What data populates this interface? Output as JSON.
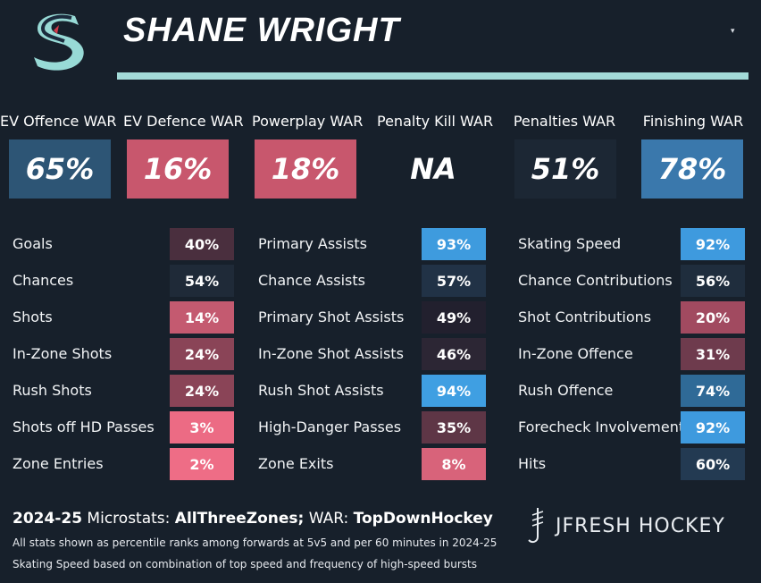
{
  "player": {
    "name": "SHANE WRIGHT"
  },
  "dropdown": {
    "icon": "chevron-down-icon",
    "glyph": "▾"
  },
  "team_logo": {
    "icon": "kraken-s-logo-icon"
  },
  "war": [
    {
      "label": "EV Offence WAR",
      "value": "65%",
      "color": "#2d5575"
    },
    {
      "label": "EV Defence WAR",
      "value": "16%",
      "color": "#c8576d"
    },
    {
      "label": "Powerplay WAR",
      "value": "18%",
      "color": "#c8576d"
    },
    {
      "label": "Penalty Kill WAR",
      "value": "NA",
      "color": "#17202b"
    },
    {
      "label": "Penalties WAR",
      "value": "51%",
      "color": "#1c2734"
    },
    {
      "label": "Finishing WAR",
      "value": "78%",
      "color": "#3a78ac"
    }
  ],
  "stats_columns": [
    [
      {
        "label": "Goals",
        "value": "40%",
        "color": "#4a2f3e"
      },
      {
        "label": "Chances",
        "value": "54%",
        "color": "#1f2a38"
      },
      {
        "label": "Shots",
        "value": "14%",
        "color": "#c45a70"
      },
      {
        "label": "In-Zone Shots",
        "value": "24%",
        "color": "#8a4457"
      },
      {
        "label": "Rush Shots",
        "value": "24%",
        "color": "#8a4457"
      },
      {
        "label": "Shots off HD Passes",
        "value": "3%",
        "color": "#ec6b84"
      },
      {
        "label": "Zone Entries",
        "value": "2%",
        "color": "#ee6d86"
      }
    ],
    [
      {
        "label": "Primary Assists",
        "value": "93%",
        "color": "#3e9bde"
      },
      {
        "label": "Chance Assists",
        "value": "57%",
        "color": "#213246"
      },
      {
        "label": "Primary Shot Assists",
        "value": "49%",
        "color": "#22202e"
      },
      {
        "label": "In-Zone Shot Assists",
        "value": "46%",
        "color": "#2c2634"
      },
      {
        "label": "Rush Shot Assists",
        "value": "94%",
        "color": "#3f9fe2"
      },
      {
        "label": "High-Danger Passes",
        "value": "35%",
        "color": "#5e3646"
      },
      {
        "label": "Zone Exits",
        "value": "8%",
        "color": "#d8637a"
      }
    ],
    [
      {
        "label": "Skating Speed",
        "value": "92%",
        "color": "#3e9ade"
      },
      {
        "label": "Chance Contributions",
        "value": "56%",
        "color": "#1f2d3d"
      },
      {
        "label": "Shot Contributions",
        "value": "20%",
        "color": "#a14a60"
      },
      {
        "label": "In-Zone Offence",
        "value": "31%",
        "color": "#6e3b4d"
      },
      {
        "label": "Rush Offence",
        "value": "74%",
        "color": "#2f6a97"
      },
      {
        "label": "Forecheck Involvement",
        "value": "92%",
        "color": "#3e9ade"
      },
      {
        "label": "Hits",
        "value": "60%",
        "color": "#233a52"
      }
    ]
  ],
  "footer": {
    "season": "2024-25",
    "microstats_text": " Microstats: ",
    "microstats_source": "AllThreeZones;",
    "war_text": " WAR: ",
    "war_source": "TopDownHockey",
    "note1": "All stats shown as percentile ranks among forwards at 5v5 and per 60 minutes in 2024-25",
    "note2": "Skating Speed based on combination of top speed and frequency of high-speed bursts"
  },
  "brand": {
    "name": "JFRESH HOCKEY",
    "icon": "jfresh-stick-logo-icon"
  }
}
